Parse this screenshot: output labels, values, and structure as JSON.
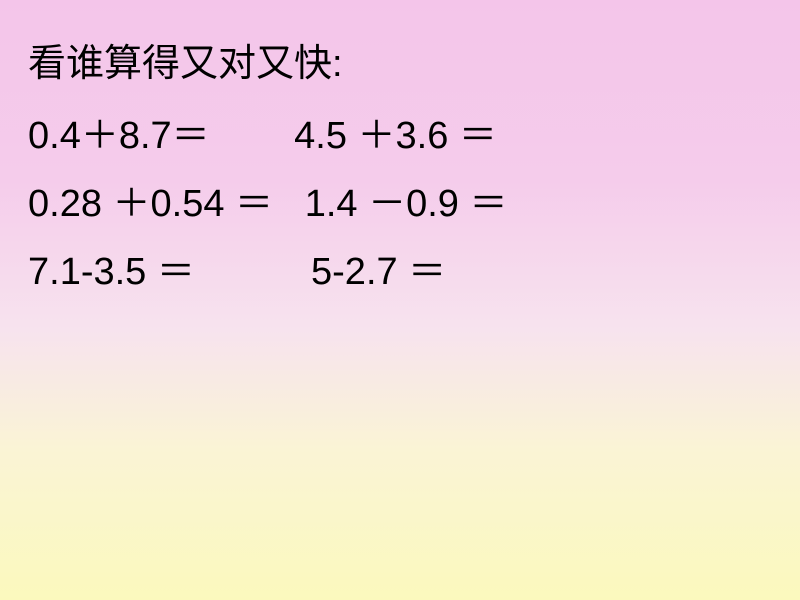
{
  "slide": {
    "background_gradient": [
      "#f4c5ea",
      "#f5cceb",
      "#f7e3ee",
      "#faf4d5",
      "#fbf9bd"
    ],
    "text_color": "#000000",
    "font_size_pt": 38,
    "title": "看谁算得又对又快:",
    "rows": [
      {
        "left": "0.4＋8.7＝",
        "right": "4.5 ＋3.6 ＝",
        "gap": "        "
      },
      {
        "left": "0.28 ＋0.54 ＝",
        "right": "1.4 －0.9 ＝",
        "gap": "   "
      },
      {
        "left": "7.1-3.5 ＝",
        "right": "5-2.7 ＝",
        "gap": "           "
      }
    ]
  }
}
